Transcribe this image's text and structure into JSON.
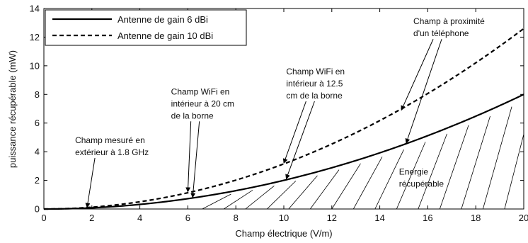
{
  "chart_data": {
    "type": "line",
    "xlabel": "Champ électrique (V/m)",
    "ylabel": "puissance récupérable (mW)",
    "xlim": [
      0,
      20
    ],
    "ylim": [
      0,
      14
    ],
    "xticks": [
      0,
      2,
      4,
      6,
      8,
      10,
      12,
      14,
      16,
      18,
      20
    ],
    "yticks": [
      0,
      2,
      4,
      6,
      8,
      10,
      12,
      14
    ],
    "grid": false,
    "legend_position": "top-left",
    "series": [
      {
        "name": "Antenne de gain 6 dBi",
        "style": "solid",
        "coef": 0.02,
        "x": [
          0,
          2,
          4,
          6,
          8,
          10,
          12,
          14,
          16,
          18,
          20
        ],
        "y": [
          0,
          0.08,
          0.32,
          0.72,
          1.28,
          2.0,
          2.88,
          3.92,
          5.12,
          6.48,
          8.0
        ]
      },
      {
        "name": "Antenne de gain 10 dBi",
        "style": "dashed",
        "coef": 0.0315,
        "x": [
          0,
          2,
          4,
          6,
          8,
          10,
          12,
          14,
          16,
          18,
          20
        ],
        "y": [
          0,
          0.13,
          0.5,
          1.13,
          2.02,
          3.15,
          4.54,
          6.17,
          8.06,
          10.21,
          12.6
        ]
      }
    ],
    "hatch_region": {
      "label": "Energie récupérable",
      "x_start": 7.2,
      "x_end": 20,
      "step": 0.9
    },
    "annotations": [
      {
        "lines": [
          "Champ mesuré en",
          "extérieur à 1.8 GHz"
        ],
        "text_x": 1.3,
        "text_y": 4.6,
        "arrows": [
          [
            1.8,
            0.1
          ]
        ]
      },
      {
        "lines": [
          "Champ WiFi en",
          "intérieur à 20 cm",
          "de la borne"
        ],
        "text_x": 5.3,
        "text_y": 8.0,
        "arrows": [
          [
            6.0,
            1.2
          ],
          [
            6.2,
            0.8
          ]
        ]
      },
      {
        "lines": [
          "Champ WiFi en",
          "intérieur à 12.5",
          "cm de la borne"
        ],
        "text_x": 10.1,
        "text_y": 9.4,
        "arrows": [
          [
            10.0,
            3.2
          ],
          [
            10.1,
            2.1
          ]
        ]
      },
      {
        "lines": [
          "Champ à proximité",
          "d'un téléphone"
        ],
        "text_x": 15.4,
        "text_y": 12.9,
        "arrows": [
          [
            14.9,
            6.9
          ],
          [
            15.1,
            4.6
          ]
        ]
      },
      {
        "lines": [
          "Energie",
          "récupérable"
        ],
        "text_x": 14.8,
        "text_y": 2.4,
        "arrows": []
      }
    ]
  }
}
